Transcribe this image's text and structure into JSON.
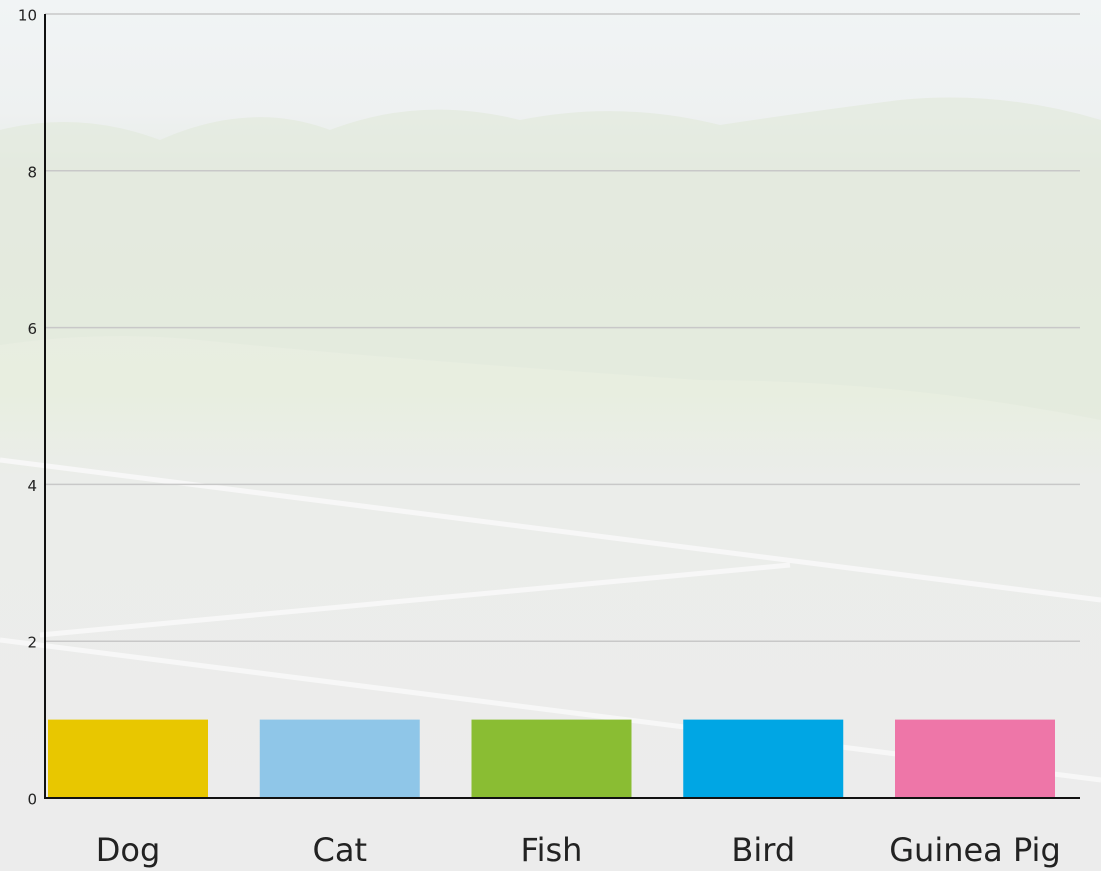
{
  "chart_data": {
    "type": "bar",
    "categories": [
      "Dog",
      "Cat",
      "Fish",
      "Bird",
      "Guinea Pig"
    ],
    "values": [
      1,
      1,
      1,
      1,
      1
    ],
    "colors": [
      "#e8c700",
      "#8fc6e8",
      "#8abd33",
      "#00a6e4",
      "#ee76a8"
    ],
    "ylim": [
      0,
      10
    ],
    "yticks": [
      0,
      2,
      4,
      6,
      8,
      10
    ],
    "grid": true
  }
}
